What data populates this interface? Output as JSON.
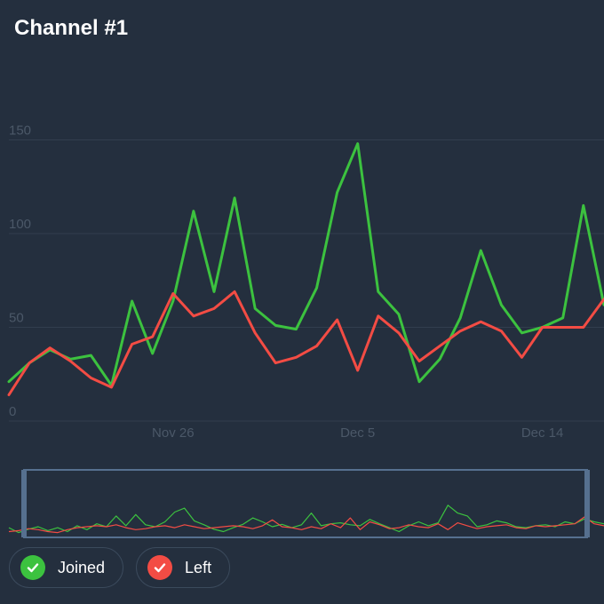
{
  "title": "Channel #1",
  "colors": {
    "background": "#242f3e",
    "joined": "#3cc23f",
    "left": "#f34c44",
    "grid": "#323e4e",
    "tick": "#4b5868",
    "navigator_border": "#56708f"
  },
  "legend": {
    "items": [
      {
        "label": "Joined",
        "icon": "check-icon",
        "checked": true
      },
      {
        "label": "Left",
        "icon": "check-icon",
        "checked": true
      }
    ]
  },
  "chart_data": {
    "type": "line",
    "title": "Channel #1",
    "xlabel": "",
    "ylabel": "",
    "ylim": [
      0,
      180
    ],
    "yticks": [
      0,
      50,
      100,
      150
    ],
    "grid": true,
    "legend_placement": "bottom-left",
    "x_tick_labels": [
      {
        "label": "Nov 26",
        "day_index": 8
      },
      {
        "label": "Dec 5",
        "day_index": 17
      },
      {
        "label": "Dec 14",
        "day_index": 26
      }
    ],
    "main_series": [
      {
        "name": "Joined",
        "color": "#3cc23f",
        "values": [
          21,
          31,
          38,
          33,
          35,
          19,
          64,
          36,
          64,
          112,
          69,
          119,
          60,
          51,
          49,
          71,
          122,
          148,
          69,
          57,
          21,
          33,
          55,
          91,
          62,
          47,
          50,
          55,
          115,
          62
        ]
      },
      {
        "name": "Left",
        "color": "#f34c44",
        "values": [
          14,
          31,
          39,
          32,
          23,
          18,
          41,
          45,
          68,
          56,
          60,
          69,
          47,
          31,
          34,
          40,
          54,
          27,
          56,
          47,
          32,
          40,
          48,
          53,
          48,
          34,
          50,
          50,
          50,
          65
        ]
      }
    ],
    "navigator": {
      "ylim": [
        0,
        150
      ],
      "series": [
        {
          "name": "Joined",
          "values": [
            18,
            8,
            15,
            20,
            12,
            18,
            10,
            22,
            14,
            26,
            20,
            42,
            22,
            45,
            24,
            20,
            30,
            50,
            58,
            32,
            24,
            15,
            10,
            18,
            25,
            38,
            30,
            20,
            25,
            18,
            24,
            48,
            22,
            26,
            28,
            24,
            22,
            35,
            26,
            18,
            10,
            22,
            30,
            22,
            28,
            64,
            48,
            42,
            20,
            24,
            32,
            28,
            20,
            18,
            22,
            24,
            20,
            30,
            26,
            36,
            30,
            26
          ]
        },
        {
          "name": "Left",
          "values": [
            10,
            12,
            16,
            14,
            10,
            8,
            14,
            18,
            20,
            22,
            20,
            24,
            18,
            14,
            16,
            20,
            22,
            18,
            24,
            20,
            16,
            18,
            20,
            22,
            20,
            16,
            22,
            34,
            20,
            18,
            14,
            20,
            16,
            26,
            18,
            38,
            14,
            30,
            24,
            16,
            18,
            24,
            20,
            18,
            26,
            14,
            28,
            22,
            16,
            20,
            22,
            24,
            18,
            16,
            22,
            20,
            22,
            24,
            26,
            40,
            26,
            22
          ]
        }
      ]
    }
  }
}
